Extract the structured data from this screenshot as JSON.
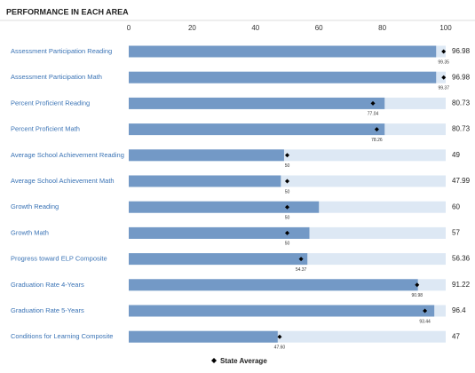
{
  "chart_data": {
    "type": "bar",
    "title": "PERFORMANCE IN EACH AREA",
    "categories": [
      "Assessment Participation Reading",
      "Assessment Participation Math",
      "Percent Proficient Reading",
      "Percent Proficient Math",
      "Average School Achievement Reading",
      "Average School Achievement Math",
      "Growth Reading",
      "Growth Math",
      "Progress toward ELP Composite",
      "Graduation Rate 4-Years",
      "Graduation Rate 5-Years",
      "Conditions for Learning Composite"
    ],
    "values": [
      96.98,
      96.98,
      80.73,
      80.73,
      49,
      47.99,
      60,
      57,
      56.36,
      91.22,
      96.4,
      47
    ],
    "color": "#7399c6",
    "track_color": "#dde8f4",
    "series": [
      {
        "name": "State Average",
        "color": "#000000",
        "values": [
          99.35,
          99.37,
          77.04,
          78.26,
          50,
          50,
          50,
          50,
          54.37,
          90.98,
          93.44,
          47.6
        ],
        "value_labels": [
          "99.35",
          "99.37",
          "77.04",
          "78.26",
          "50",
          "50",
          "50",
          "50",
          "54.37",
          "90.98",
          "93.44",
          "47.60"
        ]
      }
    ],
    "xlim": [
      0,
      100
    ],
    "xticks": [
      0,
      20,
      40,
      60,
      80,
      100
    ]
  }
}
